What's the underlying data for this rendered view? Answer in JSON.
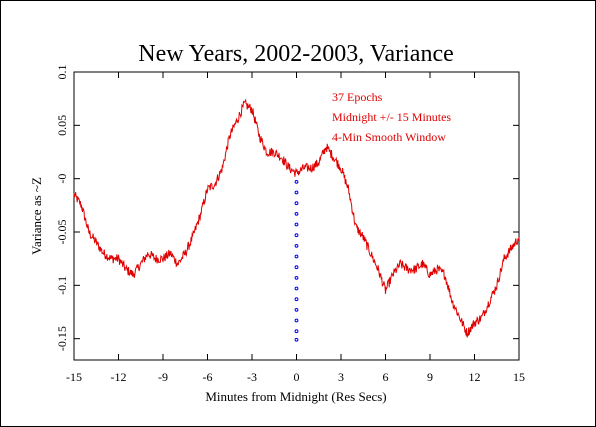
{
  "chart_data": {
    "type": "line",
    "title": "New Years, 2002-2003, Variance",
    "xlabel": "Minutes from Midnight (Res Secs)",
    "ylabel": "Variance as ~Z",
    "xlim": [
      -15,
      15
    ],
    "ylim": [
      -0.17,
      0.1
    ],
    "x_ticks": [
      -15,
      -12,
      -9,
      -6,
      -3,
      0,
      3,
      6,
      9,
      12,
      15
    ],
    "x_tick_labels": [
      "-15",
      "-12",
      "-9",
      "-6",
      "-3",
      "0",
      "3",
      "6",
      "9",
      "12",
      "15"
    ],
    "y_ticks": [
      0.1,
      0.05,
      0,
      -0.05,
      -0.1,
      -0.15
    ],
    "y_tick_labels": [
      "0.1",
      "0.05",
      "-0",
      "-0.05",
      "-0.1",
      "-0.15"
    ],
    "annotations": [
      "37 Epochs",
      "Midnight +/- 15 Minutes",
      "4-Min Smooth Window"
    ],
    "grid": false,
    "series": [
      {
        "color": "#e00000",
        "x": [
          -15.0,
          -14.5,
          -14.0,
          -13.5,
          -13.0,
          -12.5,
          -12.0,
          -11.5,
          -11.0,
          -10.5,
          -10.0,
          -9.5,
          -9.0,
          -8.5,
          -8.0,
          -7.5,
          -7.0,
          -6.5,
          -6.0,
          -5.5,
          -5.0,
          -4.5,
          -4.0,
          -3.5,
          -3.0,
          -2.5,
          -2.0,
          -1.5,
          -1.0,
          -0.5,
          0.0,
          0.5,
          1.0,
          1.5,
          2.0,
          2.5,
          3.0,
          3.5,
          4.0,
          4.5,
          5.0,
          5.5,
          6.0,
          6.5,
          7.0,
          7.5,
          8.0,
          8.5,
          9.0,
          9.5,
          10.0,
          10.5,
          11.0,
          11.5,
          12.0,
          12.5,
          13.0,
          13.5,
          14.0,
          14.5,
          15.0
        ],
        "y": [
          -0.015,
          -0.025,
          -0.05,
          -0.06,
          -0.07,
          -0.075,
          -0.075,
          -0.085,
          -0.09,
          -0.08,
          -0.07,
          -0.075,
          -0.075,
          -0.07,
          -0.08,
          -0.07,
          -0.055,
          -0.035,
          -0.01,
          -0.005,
          0.01,
          0.04,
          0.055,
          0.07,
          0.065,
          0.04,
          0.025,
          0.025,
          0.02,
          0.01,
          0.005,
          0.01,
          0.01,
          0.015,
          0.03,
          0.02,
          0.01,
          -0.01,
          -0.045,
          -0.055,
          -0.07,
          -0.085,
          -0.105,
          -0.09,
          -0.08,
          -0.085,
          -0.085,
          -0.08,
          -0.09,
          -0.085,
          -0.09,
          -0.115,
          -0.13,
          -0.145,
          -0.135,
          -0.13,
          -0.115,
          -0.1,
          -0.075,
          -0.065,
          -0.055
        ]
      },
      {
        "color": "#0000ff",
        "x": [
          0,
          0,
          0,
          0,
          0,
          0,
          0,
          0,
          0,
          0,
          0,
          0,
          0,
          0,
          0,
          0
        ],
        "y": [
          -0.003,
          -0.013,
          -0.023,
          -0.033,
          -0.043,
          -0.053,
          -0.063,
          -0.073,
          -0.083,
          -0.093,
          -0.103,
          -0.113,
          -0.123,
          -0.133,
          -0.143,
          -0.151
        ]
      }
    ]
  }
}
